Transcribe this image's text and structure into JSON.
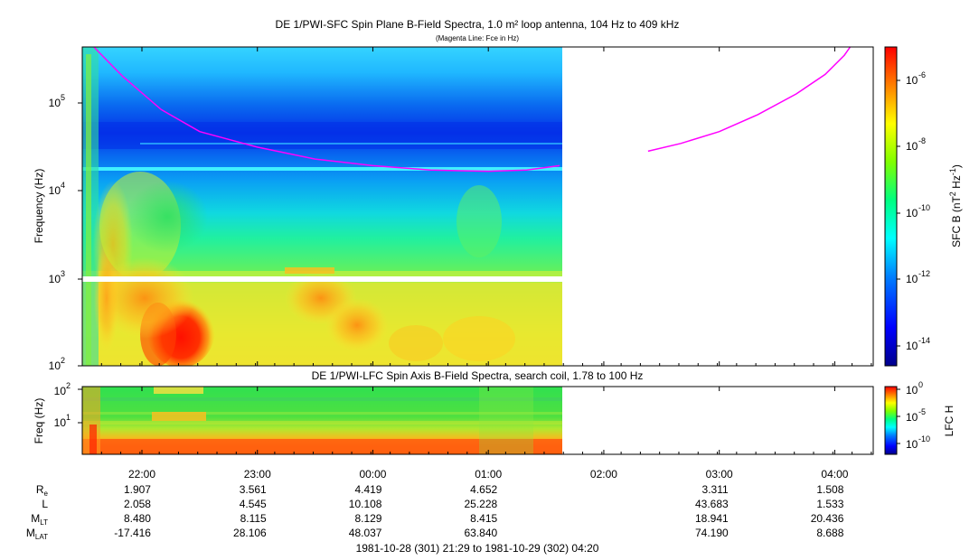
{
  "chart_data": [
    {
      "type": "heatmap",
      "title": "DE 1/PWI-SFC  Spin Plane B-Field Spectra, 1.0 m² loop antenna, 104 Hz to 409 kHz",
      "subtitle": "(Magenta Line: Fce in Hz)",
      "ylabel": "Frequency (Hz)",
      "yscale": "log",
      "ylim": [
        100,
        409000
      ],
      "yticks": [
        {
          "base": "10",
          "exp": "2",
          "value": 100
        },
        {
          "base": "10",
          "exp": "3",
          "value": 1000
        },
        {
          "base": "10",
          "exp": "4",
          "value": 10000
        },
        {
          "base": "10",
          "exp": "5",
          "value": 100000
        }
      ],
      "data_end": "21:29 to ~01:37",
      "colorbar": {
        "label": "SFC B (nT² Hz⁻¹)",
        "label_main": "SFC B (nT",
        "label_sup1": "2",
        "label_mid": " Hz",
        "label_sup2": "-1",
        "label_end": ")",
        "scale": "log",
        "range": [
          1e-15,
          1e-05
        ],
        "ticks": [
          {
            "base": "10",
            "exp": "-6",
            "value": 1e-06
          },
          {
            "base": "10",
            "exp": "-8",
            "value": 1e-08
          },
          {
            "base": "10",
            "exp": "-10",
            "value": 1e-10
          },
          {
            "base": "10",
            "exp": "-12",
            "value": 1e-12
          },
          {
            "base": "10",
            "exp": "-14",
            "value": 1e-14
          }
        ]
      },
      "series": [
        {
          "name": "Fce in Hz",
          "color": "#ff00ff",
          "points": [
            [
              "21:35",
              409000
            ],
            [
              "21:50",
              190000
            ],
            [
              "22:10",
              80000
            ],
            [
              "22:30",
              45000
            ],
            [
              "23:00",
              30000
            ],
            [
              "23:30",
              22000
            ],
            [
              "00:00",
              18500
            ],
            [
              "00:30",
              16500
            ],
            [
              "01:00",
              16000
            ],
            [
              "01:20",
              16500
            ],
            [
              "01:37",
              18500
            ],
            [
              "02:23",
              27000
            ],
            [
              "02:40",
              33000
            ],
            [
              "03:00",
              45000
            ],
            [
              "03:20",
              70000
            ],
            [
              "03:40",
              120000
            ],
            [
              "03:55",
              200000
            ],
            [
              "04:05",
              330000
            ],
            [
              "04:08",
              409000
            ]
          ]
        }
      ]
    },
    {
      "type": "heatmap",
      "title": "DE 1/PWI-LFC  Spin Axis B-Field Spectra, search coil, 1.78 to 100 Hz",
      "ylabel": "Freq (Hz)",
      "yscale": "log",
      "ylim": [
        1.78,
        100
      ],
      "yticks": [
        {
          "base": "10",
          "exp": "1",
          "value": 10
        },
        {
          "base": "10",
          "exp": "2",
          "value": 100
        }
      ],
      "colorbar": {
        "label": "LFC H",
        "scale": "log",
        "range": [
          1e-12,
          1
        ],
        "ticks": [
          {
            "base": "10",
            "exp": "0",
            "value": 1
          },
          {
            "base": "10",
            "exp": "-5",
            "value": 1e-05
          },
          {
            "base": "10",
            "exp": "-10",
            "value": 1e-10
          }
        ]
      }
    }
  ],
  "xaxis": {
    "tick_labels": [
      "22:00",
      "23:00",
      "00:00",
      "01:00",
      "02:00",
      "03:00",
      "04:00"
    ],
    "ephemeris": [
      {
        "label": "R",
        "sub": "e",
        "values": [
          "1.907",
          "3.561",
          "4.419",
          "4.652",
          "",
          "3.311",
          "1.508"
        ]
      },
      {
        "label": "L",
        "sub": "",
        "values": [
          "2.058",
          "4.545",
          "10.108",
          "25.228",
          "",
          "43.683",
          "1.533"
        ]
      },
      {
        "label": "M",
        "sub": "LT",
        "values": [
          "8.480",
          "8.115",
          "8.129",
          "8.415",
          "",
          "18.941",
          "20.436"
        ]
      },
      {
        "label": "M",
        "sub": "LAT",
        "values": [
          "-17.416",
          "28.106",
          "48.037",
          "63.840",
          "",
          "74.190",
          "8.688"
        ]
      }
    ],
    "range_label": "1981-10-28 (301) 21:29 to 1981-10-29 (302) 04:20"
  },
  "colors": {
    "fce_line": "#ff00ff",
    "colormap": [
      "#00008b",
      "#0000ff",
      "#0080ff",
      "#00ffff",
      "#00ff80",
      "#80ff00",
      "#ffff00",
      "#ff8000",
      "#ff0000"
    ]
  }
}
